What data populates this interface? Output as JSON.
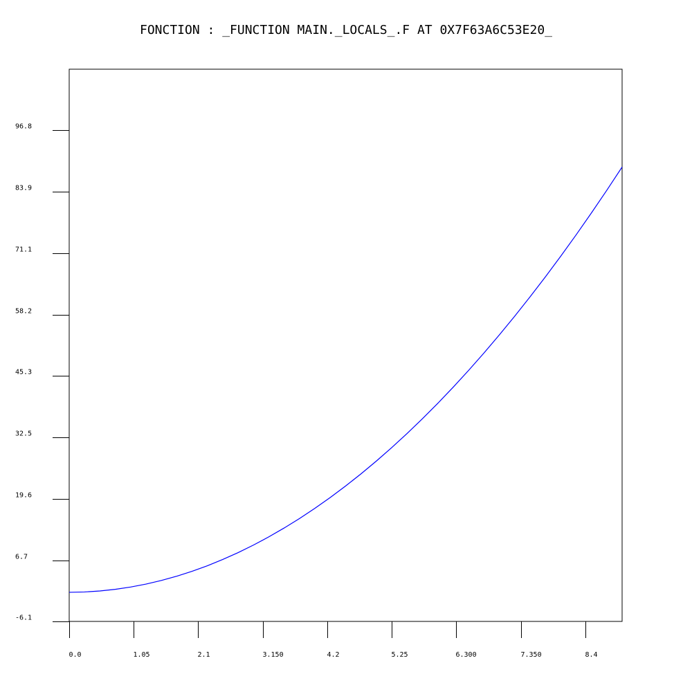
{
  "chart_data": {
    "type": "line",
    "title": "FONCTION : _FUNCTION MAIN._LOCALS_.F AT 0X7F63A6C53E20_",
    "xlabel": "",
    "ylabel": "",
    "xlim": [
      0.0,
      9.0
    ],
    "ylim": [
      -6.1,
      109.6
    ],
    "x_ticks": [
      0.0,
      1.05,
      2.1,
      3.15,
      4.2,
      5.25,
      6.3,
      7.35,
      8.4
    ],
    "x_tick_labels": [
      "0.0",
      "1.05",
      "2.1",
      "3.150",
      "4.2",
      "5.25",
      "6.300",
      "7.350",
      "8.4"
    ],
    "y_ticks": [
      -6.1,
      6.7,
      19.6,
      32.5,
      45.3,
      58.2,
      71.1,
      83.9,
      96.8
    ],
    "y_tick_labels": [
      "-6.1",
      "6.7",
      "19.6",
      "32.5",
      "45.3",
      "58.2",
      "71.1",
      "83.9",
      "96.8"
    ],
    "grid": false,
    "series": [
      {
        "color": "#0000ff",
        "x": [
          0.0,
          0.25,
          0.5,
          0.75,
          1.0,
          1.25,
          1.5,
          1.75,
          2.0,
          2.25,
          2.5,
          2.75,
          3.0,
          3.25,
          3.5,
          3.75,
          4.0,
          4.25,
          4.5,
          4.75,
          5.0,
          5.25,
          5.5,
          5.75,
          6.0,
          6.25,
          6.5,
          6.75,
          7.0,
          7.25,
          7.5,
          7.75,
          8.0,
          8.25,
          8.5,
          8.75,
          9.0
        ],
        "y": [
          0.0,
          0.07,
          0.28,
          0.62,
          1.1,
          1.72,
          2.48,
          3.37,
          4.4,
          5.57,
          6.88,
          8.32,
          9.9,
          11.62,
          13.48,
          15.47,
          17.6,
          19.87,
          22.28,
          24.82,
          27.5,
          30.32,
          33.28,
          36.37,
          39.6,
          42.97,
          46.48,
          50.12,
          53.9,
          57.82,
          61.88,
          66.07,
          70.4,
          74.87,
          79.48,
          84.22,
          89.1
        ]
      }
    ]
  }
}
